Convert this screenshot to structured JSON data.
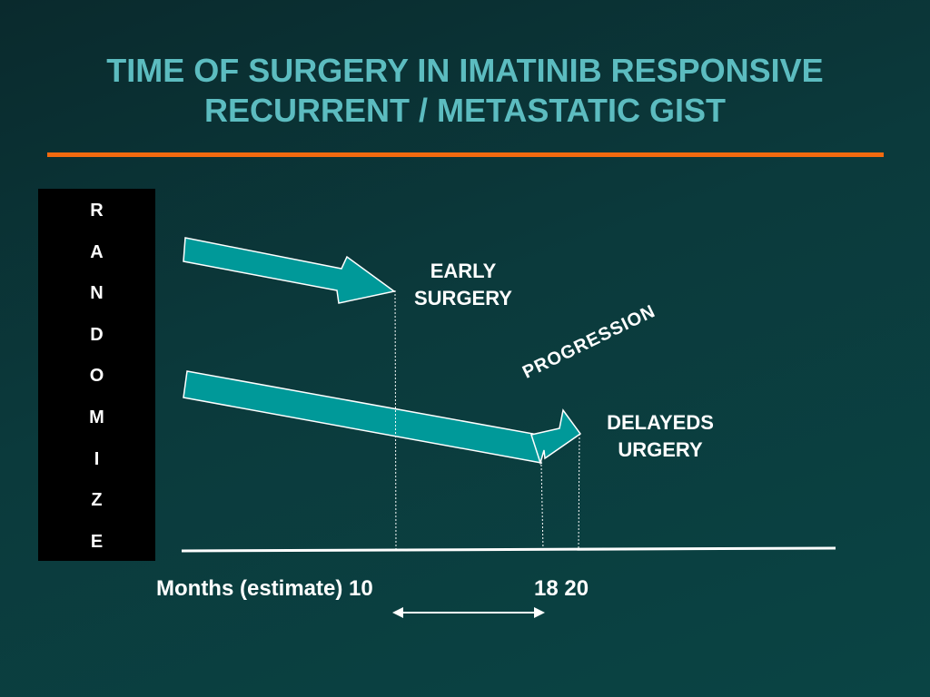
{
  "slide": {
    "title_line1": "TIME OF SURGERY IN IMATINIB RESPONSIVE",
    "title_line2": "RECURRENT / METASTATIC GIST",
    "accent_color": "#f26a0f",
    "title_color": "#5cbcc0",
    "arrow_color": "#009999"
  },
  "randomize": {
    "letters": [
      "R",
      "A",
      "N",
      "D",
      "O",
      "M",
      "I",
      "Z",
      "E"
    ]
  },
  "labels": {
    "early_surgery_line1": "EARLY",
    "early_surgery_line2": "SURGERY",
    "progression": "PROGRESSION",
    "delayed_surgery_line1": "DELAYEDS",
    "delayed_surgery_line2": "URGERY"
  },
  "axis": {
    "label": "Months (estimate) 10",
    "ticks_right": "18 20",
    "marks_months": [
      10,
      18,
      20
    ]
  }
}
